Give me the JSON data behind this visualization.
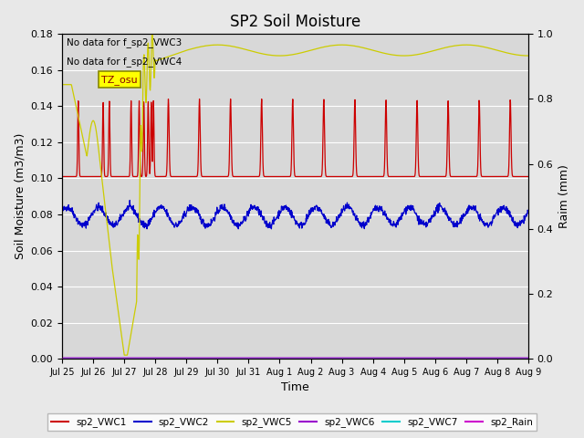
{
  "title": "SP2 Soil Moisture",
  "xlabel": "Time",
  "ylabel_left": "Soil Moisture (m3/m3)",
  "ylabel_right": "Raim (mm)",
  "annotation_lines": [
    "No data for f_sp2_VWC3",
    "No data for f_sp2_VWC4"
  ],
  "tz_label": "TZ_osu",
  "x_tick_labels": [
    "Jul 25",
    "Jul 26",
    "Jul 27",
    "Jul 28",
    "Jul 29",
    "Jul 30",
    "Jul 31",
    "Aug 1",
    "Aug 2",
    "Aug 3",
    "Aug 4",
    "Aug 5",
    "Aug 6",
    "Aug 7",
    "Aug 8",
    "Aug 9"
  ],
  "x_tick_positions": [
    0,
    1,
    2,
    3,
    4,
    5,
    6,
    7,
    8,
    9,
    10,
    11,
    12,
    13,
    14,
    15
  ],
  "ylim_left": [
    0.0,
    0.18
  ],
  "ylim_right": [
    0.0,
    1.0
  ],
  "yticks_left": [
    0.0,
    0.02,
    0.04,
    0.06,
    0.08,
    0.1,
    0.12,
    0.14,
    0.16,
    0.18
  ],
  "yticks_right": [
    0.0,
    0.2,
    0.4,
    0.6,
    0.8,
    1.0
  ],
  "background_color": "#e8e8e8",
  "plot_bg_color": "#d8d8d8",
  "grid_color": "#ffffff",
  "n_days": 15,
  "legend_items": [
    {
      "label": "sp2_VWC1",
      "color": "#cc0000",
      "linestyle": "-"
    },
    {
      "label": "sp2_VWC2",
      "color": "#0000cc",
      "linestyle": "-"
    },
    {
      "label": "sp2_VWC5",
      "color": "#cccc00",
      "linestyle": "-"
    },
    {
      "label": "sp2_VWC6",
      "color": "#9900cc",
      "linestyle": "-"
    },
    {
      "label": "sp2_VWC7",
      "color": "#00cccc",
      "linestyle": "-"
    },
    {
      "label": "sp2_Rain",
      "color": "#cc00cc",
      "linestyle": "-"
    }
  ]
}
